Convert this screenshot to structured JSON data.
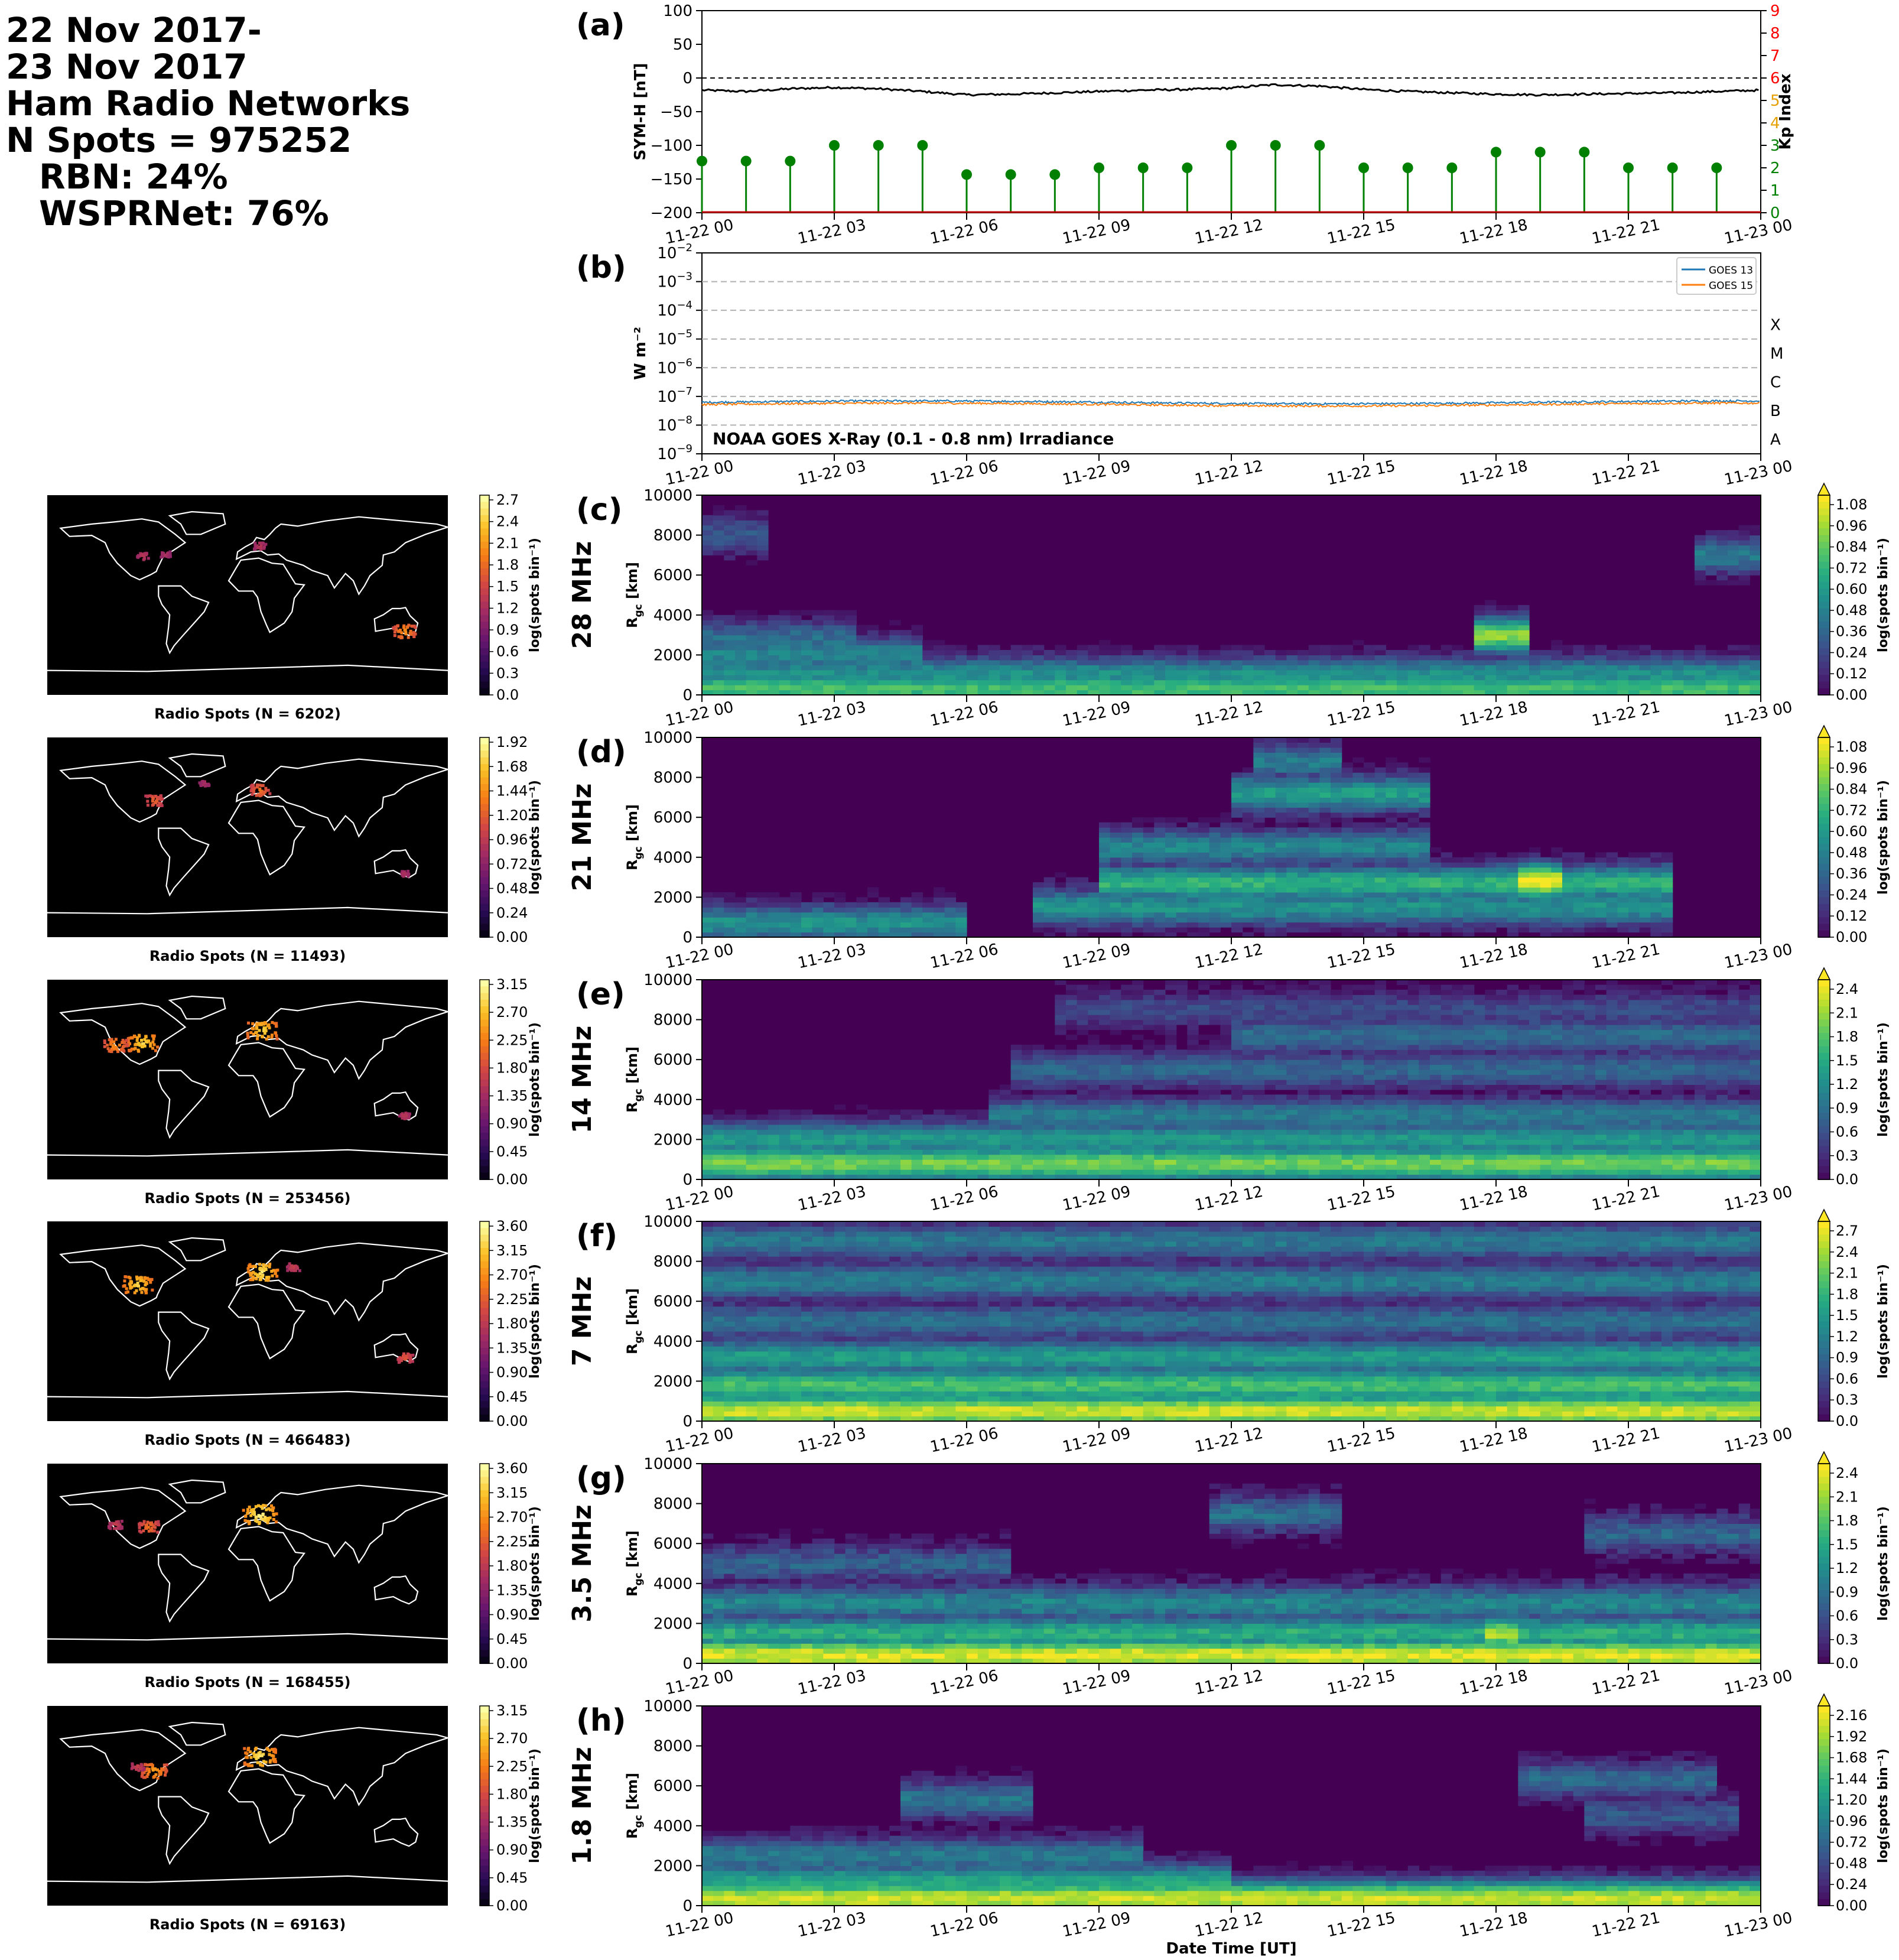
{
  "header": {
    "date_line1": "22 Nov 2017-",
    "date_line2": "23 Nov 2017",
    "network": "Ham Radio Networks",
    "n_spots": "N Spots = 975252",
    "rbn": "RBN: 24%",
    "wsprnet": "WSPRNet: 76%"
  },
  "time_ticks": [
    "11-22 00",
    "11-22 03",
    "11-22 06",
    "11-22 09",
    "11-22 12",
    "11-22 15",
    "11-22 18",
    "11-22 21",
    "11-23 00"
  ],
  "xlabel": "Date Time [UT]",
  "chart_data": [
    {
      "type": "line",
      "panel": "(a)",
      "ylabel": "SYM-H [nT]",
      "ylabel_right": "Kp Index",
      "ylim": [
        -200,
        100
      ],
      "yticks": [
        "100",
        "50",
        "0",
        "−50",
        "−100",
        "−150",
        "−200"
      ],
      "right_ticks": [
        "0",
        "1",
        "2",
        "3",
        "4",
        "5",
        "6",
        "7",
        "8",
        "9"
      ],
      "right_tick_colors": [
        "#008000",
        "#008000",
        "#008000",
        "#008000",
        "#e6a000",
        "#e6a000",
        "#ff0000",
        "#ff0000",
        "#ff0000",
        "#ff0000"
      ],
      "symh_hours": [
        0,
        1,
        2,
        3,
        4,
        5,
        6,
        7,
        8,
        9,
        10,
        11,
        12,
        12.5,
        13,
        14,
        15,
        16,
        17,
        18,
        19,
        20,
        21,
        22,
        23,
        24
      ],
      "symh_values": [
        -18,
        -20,
        -16,
        -14,
        -16,
        -20,
        -25,
        -24,
        -22,
        -20,
        -18,
        -17,
        -15,
        -12,
        -10,
        -12,
        -17,
        -20,
        -22,
        -24,
        -25,
        -24,
        -23,
        -22,
        -20,
        -18
      ],
      "kp_hours": [
        0,
        1,
        2,
        3,
        4,
        5,
        6,
        7,
        8,
        9,
        10,
        11,
        12,
        13,
        14,
        15,
        16,
        17,
        18,
        19,
        20,
        21,
        22,
        23
      ],
      "kp_values": [
        2.3,
        2.3,
        2.3,
        3,
        3,
        3,
        1.7,
        1.7,
        1.7,
        2,
        2,
        2,
        3,
        3,
        3,
        2,
        2,
        2,
        2.7,
        2.7,
        2.7,
        2,
        2,
        2
      ],
      "kp_color": "#008000",
      "symh_color": "#000000"
    },
    {
      "type": "line",
      "panel": "(b)",
      "ylabel": "W m⁻²",
      "scale": "log",
      "ylim": [
        1e-09,
        0.01
      ],
      "ytick_exps": [
        "−9",
        "−8",
        "−7",
        "−6",
        "−5",
        "−4",
        "−3",
        "−2"
      ],
      "flare_classes": [
        "A",
        "B",
        "C",
        "M",
        "X"
      ],
      "annotation": "NOAA GOES X-Ray (0.1 - 0.8 nm) Irradiance",
      "series": [
        {
          "name": "GOES 13",
          "color": "#1f77b4",
          "mean": 6.2e-08
        },
        {
          "name": "GOES 15",
          "color": "#ff7f0e",
          "mean": 5.2e-08
        }
      ],
      "legend": "top-right"
    },
    {
      "type": "heatmap",
      "panel": "(c)",
      "band": "28 MHz",
      "map_title": "Radio Spots (N = 6202)",
      "map_ticks": [
        "2.7",
        "2.4",
        "2.1",
        "1.8",
        "1.5",
        "1.2",
        "0.9",
        "0.6",
        "0.3",
        "0.0"
      ],
      "cbar_ticks": [
        "1.08",
        "0.96",
        "0.84",
        "0.72",
        "0.60",
        "0.48",
        "0.36",
        "0.24",
        "0.12",
        "0.00"
      ],
      "cbar_label": "log(spots bin⁻¹)",
      "ylabel": "R_gc [km]",
      "ylim": [
        0,
        10000
      ],
      "vmax": 1.08,
      "bands": [
        {
          "r": 300,
          "start": 0,
          "end": 24,
          "level": 0.75
        },
        {
          "r": 1000,
          "start": 0,
          "end": 24,
          "level": 0.55
        },
        {
          "r": 2000,
          "start": 0,
          "end": 5,
          "level": 0.5
        },
        {
          "r": 2800,
          "start": 0,
          "end": 3.5,
          "level": 0.4
        },
        {
          "r": 3000,
          "start": 17.5,
          "end": 18.8,
          "level": 0.9
        },
        {
          "r": 7000,
          "start": 22.5,
          "end": 24,
          "level": 0.45
        },
        {
          "r": 8000,
          "start": 0,
          "end": 1.5,
          "level": 0.3
        }
      ],
      "noise": 0.07
    },
    {
      "type": "heatmap",
      "panel": "(d)",
      "band": "21 MHz",
      "map_title": "Radio Spots (N = 11493)",
      "map_ticks": [
        "1.92",
        "1.68",
        "1.44",
        "1.20",
        "0.96",
        "0.72",
        "0.48",
        "0.24",
        "0.00"
      ],
      "cbar_ticks": [
        "1.08",
        "0.96",
        "0.84",
        "0.72",
        "0.60",
        "0.48",
        "0.36",
        "0.24",
        "0.12",
        "0.00"
      ],
      "cbar_label": "log(spots bin⁻¹)",
      "ylabel": "R_gc [km]",
      "ylim": [
        0,
        10000
      ],
      "vmax": 1.08,
      "bands": [
        {
          "r": 700,
          "start": 0,
          "end": 6,
          "level": 0.55
        },
        {
          "r": 1500,
          "start": 7.5,
          "end": 22,
          "level": 0.55
        },
        {
          "r": 2700,
          "start": 9,
          "end": 22,
          "level": 0.7
        },
        {
          "r": 2800,
          "start": 18.5,
          "end": 19.6,
          "level": 1.05
        },
        {
          "r": 4500,
          "start": 9,
          "end": 16.5,
          "level": 0.5
        },
        {
          "r": 7200,
          "start": 12,
          "end": 16.5,
          "level": 0.6
        },
        {
          "r": 8800,
          "start": 12.5,
          "end": 14.5,
          "level": 0.45
        }
      ],
      "noise": 0.08
    },
    {
      "type": "heatmap",
      "panel": "(e)",
      "band": "14 MHz",
      "map_title": "Radio Spots (N = 253456)",
      "map_ticks": [
        "3.15",
        "2.70",
        "2.25",
        "1.80",
        "1.35",
        "0.90",
        "0.45",
        "0.00"
      ],
      "cbar_ticks": [
        "2.4",
        "2.1",
        "1.8",
        "1.5",
        "1.2",
        "0.9",
        "0.6",
        "0.3",
        "0.0"
      ],
      "cbar_label": "log(spots bin⁻¹)",
      "ylabel": "R_gc [km]",
      "ylim": [
        0,
        10000
      ],
      "vmax": 2.4,
      "bands": [
        {
          "r": 800,
          "start": 0,
          "end": 24,
          "level": 1.9
        },
        {
          "r": 2000,
          "start": 0,
          "end": 24,
          "level": 1.3
        },
        {
          "r": 3200,
          "start": 6.5,
          "end": 24,
          "level": 1.0
        },
        {
          "r": 5500,
          "start": 7,
          "end": 24,
          "level": 0.8
        },
        {
          "r": 7200,
          "start": 12,
          "end": 24,
          "level": 0.85
        },
        {
          "r": 8500,
          "start": 8,
          "end": 24,
          "level": 0.55
        }
      ],
      "noise": 0.15
    },
    {
      "type": "heatmap",
      "panel": "(f)",
      "band": "7 MHz",
      "map_title": "Radio Spots (N = 466483)",
      "map_ticks": [
        "3.60",
        "3.15",
        "2.70",
        "2.25",
        "1.80",
        "1.35",
        "0.90",
        "0.45",
        "0.00"
      ],
      "cbar_ticks": [
        "2.7",
        "2.4",
        "2.1",
        "1.8",
        "1.5",
        "1.2",
        "0.9",
        "0.6",
        "0.3",
        "0.0"
      ],
      "cbar_label": "log(spots bin⁻¹)",
      "ylabel": "R_gc [km]",
      "ylim": [
        0,
        10000
      ],
      "vmax": 2.7,
      "bands": [
        {
          "r": 500,
          "start": 0,
          "end": 24,
          "level": 2.5
        },
        {
          "r": 1800,
          "start": 0,
          "end": 24,
          "level": 1.9
        },
        {
          "r": 3200,
          "start": 0,
          "end": 24,
          "level": 1.5
        },
        {
          "r": 5000,
          "start": 0,
          "end": 24,
          "level": 1.0
        },
        {
          "r": 7000,
          "start": 0,
          "end": 24,
          "level": 1.15
        },
        {
          "r": 9000,
          "start": 0,
          "end": 24,
          "level": 1.1
        }
      ],
      "noise": 0.18
    },
    {
      "type": "heatmap",
      "panel": "(g)",
      "band": "3.5 MHz",
      "map_title": "Radio Spots (N = 168455)",
      "map_ticks": [
        "3.60",
        "3.15",
        "2.70",
        "2.25",
        "1.80",
        "1.35",
        "0.90",
        "0.45",
        "0.00"
      ],
      "cbar_ticks": [
        "2.4",
        "2.1",
        "1.8",
        "1.5",
        "1.2",
        "0.9",
        "0.6",
        "0.3",
        "0.0"
      ],
      "cbar_label": "log(spots bin⁻¹)",
      "ylabel": "R_gc [km]",
      "ylim": [
        0,
        10000
      ],
      "vmax": 2.4,
      "bands": [
        {
          "r": 400,
          "start": 0,
          "end": 24,
          "level": 2.3
        },
        {
          "r": 1500,
          "start": 0,
          "end": 24,
          "level": 1.5
        },
        {
          "r": 1500,
          "start": 17.7,
          "end": 18.6,
          "level": 2.1
        },
        {
          "r": 3000,
          "start": 0,
          "end": 24,
          "level": 1.1
        },
        {
          "r": 5000,
          "start": 0,
          "end": 7,
          "level": 0.75
        },
        {
          "r": 7500,
          "start": 11.5,
          "end": 14.5,
          "level": 0.9
        },
        {
          "r": 6500,
          "start": 20,
          "end": 24,
          "level": 0.8
        }
      ],
      "noise": 0.2
    },
    {
      "type": "heatmap",
      "panel": "(h)",
      "band": "1.8 MHz",
      "map_title": "Radio Spots (N = 69163)",
      "map_ticks": [
        "3.15",
        "2.70",
        "2.25",
        "1.80",
        "1.35",
        "0.90",
        "0.45",
        "0.00"
      ],
      "cbar_ticks": [
        "2.16",
        "1.92",
        "1.68",
        "1.44",
        "1.20",
        "0.96",
        "0.72",
        "0.48",
        "0.24",
        "0.00"
      ],
      "cbar_label": "log(spots bin⁻¹)",
      "ylabel": "R_gc [km]",
      "ylim": [
        0,
        10000
      ],
      "vmax": 2.16,
      "bands": [
        {
          "r": 350,
          "start": 0,
          "end": 24,
          "level": 2.0
        },
        {
          "r": 1200,
          "start": 0,
          "end": 12,
          "level": 1.3
        },
        {
          "r": 2500,
          "start": 0,
          "end": 10,
          "level": 0.9
        },
        {
          "r": 5300,
          "start": 4.5,
          "end": 7.5,
          "level": 0.85
        },
        {
          "r": 6300,
          "start": 18.5,
          "end": 23,
          "level": 0.75
        },
        {
          "r": 4500,
          "start": 20,
          "end": 23.5,
          "level": 0.6
        }
      ],
      "noise": 0.14
    }
  ]
}
